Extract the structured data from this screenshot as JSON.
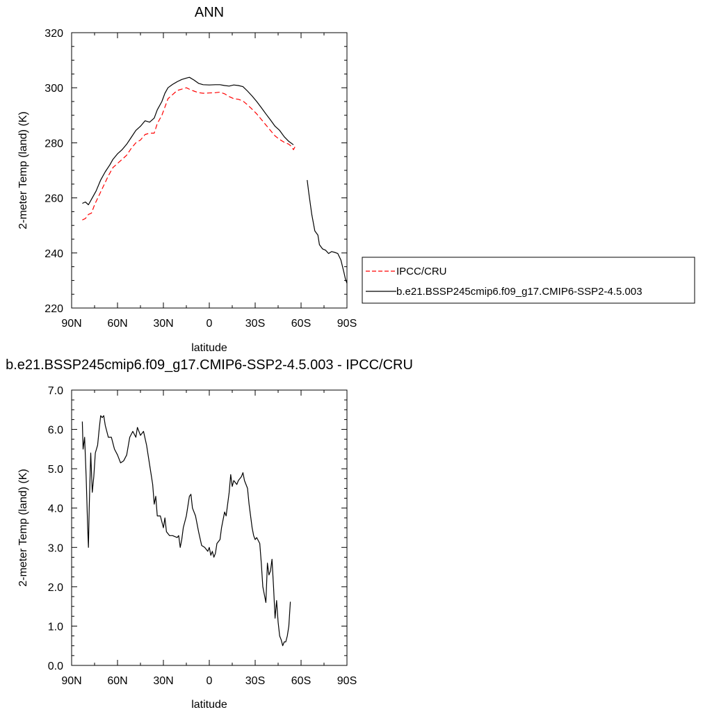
{
  "chart_data": [
    {
      "type": "line",
      "title": "ANN",
      "xlabel": "latitude",
      "ylabel": "2-meter Temp (land) (K)",
      "xlim": [
        90,
        -90
      ],
      "ylim": [
        220,
        320
      ],
      "x_ticks": [
        90,
        60,
        30,
        0,
        -30,
        -60,
        -90
      ],
      "x_tick_labels": [
        "90N",
        "60N",
        "30N",
        "0",
        "30S",
        "60S",
        "90S"
      ],
      "y_ticks": [
        220,
        240,
        260,
        280,
        300,
        320
      ],
      "y_tick_labels": [
        "220",
        "240",
        "260",
        "280",
        "300",
        "320"
      ],
      "legend_position": "right",
      "series": [
        {
          "name": "IPCC/CRU",
          "style": "dashed",
          "color": "#ff0000",
          "segments": [
            [
              [
                83,
                252
              ],
              [
                81,
                252.5
              ],
              [
                79,
                254
              ],
              [
                77,
                254.5
              ],
              [
                75,
                257.5
              ],
              [
                72,
                261
              ],
              [
                69,
                264.5
              ],
              [
                66,
                268
              ],
              [
                63,
                271
              ],
              [
                60,
                272.5
              ],
              [
                57,
                274
              ],
              [
                54,
                275.5
              ],
              [
                51,
                278
              ],
              [
                48,
                280
              ],
              [
                45,
                281
              ],
              [
                42,
                283
              ],
              [
                39,
                283.5
              ],
              [
                36,
                283.5
              ],
              [
                34,
                287
              ],
              [
                31,
                290
              ],
              [
                29,
                293
              ],
              [
                27,
                296
              ],
              [
                24,
                297.5
              ],
              [
                21,
                299
              ],
              [
                18,
                299.5
              ],
              [
                15,
                300
              ],
              [
                12,
                299.2
              ],
              [
                10,
                298.8
              ],
              [
                7,
                298.2
              ],
              [
                4,
                298
              ],
              [
                0,
                298.1
              ],
              [
                -4,
                298.2
              ],
              [
                -7,
                298.4
              ],
              [
                -10,
                297.8
              ],
              [
                -13,
                296.8
              ],
              [
                -16,
                296
              ],
              [
                -19,
                295.8
              ],
              [
                -22,
                295.2
              ],
              [
                -25,
                293.8
              ],
              [
                -28,
                292.2
              ],
              [
                -31,
                290.5
              ],
              [
                -34,
                288.5
              ],
              [
                -37,
                286.5
              ],
              [
                -40,
                284.5
              ],
              [
                -43,
                282.5
              ],
              [
                -46,
                281.2
              ],
              [
                -49,
                280.2
              ],
              [
                -52,
                279.5
              ],
              [
                -54,
                278.5
              ],
              [
                -55,
                277.5
              ],
              [
                -56,
                278.5
              ]
            ]
          ]
        },
        {
          "name": "b.e21.BSSP245cmip6.f09_g17.CMIP6-SSP2-4.5.003",
          "style": "solid",
          "color": "#000000",
          "segments": [
            [
              [
                83,
                258
              ],
              [
                81,
                258.5
              ],
              [
                79,
                257.5
              ],
              [
                77,
                259.5
              ],
              [
                74,
                262.5
              ],
              [
                71,
                266.5
              ],
              [
                68,
                269.5
              ],
              [
                65,
                272
              ],
              [
                63,
                274
              ],
              [
                60,
                276
              ],
              [
                57,
                277.5
              ],
              [
                54,
                279.5
              ],
              [
                51,
                282
              ],
              [
                48,
                284.5
              ],
              [
                45,
                286
              ],
              [
                42,
                288
              ],
              [
                39,
                287.5
              ],
              [
                36,
                289
              ],
              [
                34,
                292
              ],
              [
                31,
                295
              ],
              [
                29,
                298
              ],
              [
                27,
                300
              ],
              [
                24,
                301.2
              ],
              [
                21,
                302.2
              ],
              [
                18,
                303
              ],
              [
                15,
                303.5
              ],
              [
                13,
                303.8
              ],
              [
                10,
                302.8
              ],
              [
                7,
                301.6
              ],
              [
                4,
                301.1
              ],
              [
                0,
                301
              ],
              [
                -4,
                301.1
              ],
              [
                -7,
                301.1
              ],
              [
                -10,
                300.8
              ],
              [
                -13,
                300.6
              ],
              [
                -16,
                301
              ],
              [
                -19,
                300.8
              ],
              [
                -22,
                300.4
              ],
              [
                -25,
                298.8
              ],
              [
                -28,
                297
              ],
              [
                -31,
                295
              ],
              [
                -34,
                292.8
              ],
              [
                -37,
                290.5
              ],
              [
                -40,
                288.3
              ],
              [
                -43,
                286
              ],
              [
                -46,
                284.5
              ],
              [
                -49,
                282.2
              ],
              [
                -52,
                280.5
              ],
              [
                -55,
                279.3
              ]
            ],
            [
              [
                -64,
                266.5
              ],
              [
                -65,
                262
              ],
              [
                -67,
                254
              ],
              [
                -69,
                248
              ],
              [
                -71,
                246.5
              ],
              [
                -72,
                243
              ],
              [
                -74,
                241.5
              ],
              [
                -76,
                241
              ],
              [
                -78,
                239.8
              ],
              [
                -80,
                240.5
              ],
              [
                -82,
                240.2
              ],
              [
                -84,
                239.8
              ],
              [
                -86,
                237.5
              ],
              [
                -88,
                233
              ],
              [
                -89,
                230.5
              ],
              [
                -90,
                229
              ]
            ]
          ]
        }
      ]
    },
    {
      "type": "line",
      "title": "b.e21.BSSP245cmip6.f09_g17.CMIP6-SSP2-4.5.003 - IPCC/CRU",
      "xlabel": "latitude",
      "ylabel": "2-meter Temp (land) (K)",
      "xlim": [
        90,
        -90
      ],
      "ylim": [
        0,
        7
      ],
      "x_ticks": [
        90,
        60,
        30,
        0,
        -30,
        -60,
        -90
      ],
      "x_tick_labels": [
        "90N",
        "60N",
        "30N",
        "0",
        "30S",
        "60S",
        "90S"
      ],
      "y_ticks": [
        0,
        1,
        2,
        3,
        4,
        5,
        6,
        7
      ],
      "y_tick_labels": [
        "0.0",
        "1.0",
        "2.0",
        "3.0",
        "4.0",
        "5.0",
        "6.0",
        "7.0"
      ],
      "series": [
        {
          "style": "solid",
          "color": "#000000",
          "segments": [
            [
              [
                83,
                6.2
              ],
              [
                82.5,
                5.5
              ],
              [
                81.5,
                5.8
              ],
              [
                80.5,
                4.8
              ],
              [
                79.5,
                3.5
              ],
              [
                79,
                3.0
              ],
              [
                78.5,
                4.0
              ],
              [
                77.5,
                5.4
              ],
              [
                76.5,
                4.4
              ],
              [
                75.5,
                4.8
              ],
              [
                74.5,
                5.4
              ],
              [
                73,
                5.6
              ],
              [
                72,
                6.0
              ],
              [
                71,
                6.35
              ],
              [
                70,
                6.3
              ],
              [
                69,
                6.35
              ],
              [
                68,
                6.1
              ],
              [
                66,
                5.8
              ],
              [
                64,
                5.8
              ],
              [
                62,
                5.5
              ],
              [
                60,
                5.35
              ],
              [
                58,
                5.15
              ],
              [
                56,
                5.2
              ],
              [
                54,
                5.35
              ],
              [
                52,
                5.8
              ],
              [
                50,
                5.95
              ],
              [
                48,
                5.8
              ],
              [
                47,
                6.05
              ],
              [
                45,
                5.85
              ],
              [
                43,
                5.95
              ],
              [
                41,
                5.6
              ],
              [
                39,
                5.1
              ],
              [
                37,
                4.6
              ],
              [
                36,
                4.1
              ],
              [
                35,
                4.3
              ],
              [
                34,
                3.8
              ],
              [
                32,
                3.8
              ],
              [
                30,
                3.5
              ],
              [
                29,
                3.75
              ],
              [
                28,
                3.4
              ],
              [
                26,
                3.3
              ],
              [
                24,
                3.3
              ],
              [
                21,
                3.25
              ],
              [
                20,
                3.3
              ],
              [
                19,
                3.0
              ],
              [
                18,
                3.2
              ],
              [
                17,
                3.5
              ],
              [
                15,
                3.8
              ],
              [
                13,
                4.3
              ],
              [
                12,
                4.35
              ],
              [
                11,
                4.0
              ],
              [
                9,
                3.8
              ],
              [
                7,
                3.4
              ],
              [
                5,
                3.05
              ],
              [
                3,
                3.0
              ],
              [
                1,
                2.9
              ],
              [
                0,
                3.0
              ],
              [
                -1,
                2.8
              ],
              [
                -2,
                2.9
              ],
              [
                -3,
                2.75
              ],
              [
                -4,
                2.85
              ],
              [
                -5,
                3.1
              ],
              [
                -7,
                3.2
              ],
              [
                -8,
                3.5
              ],
              [
                -10,
                3.9
              ],
              [
                -11,
                3.8
              ],
              [
                -13,
                4.4
              ],
              [
                -14,
                4.85
              ],
              [
                -15,
                4.55
              ],
              [
                -16,
                4.7
              ],
              [
                -18,
                4.6
              ],
              [
                -19,
                4.7
              ],
              [
                -21,
                4.8
              ],
              [
                -22,
                4.9
              ],
              [
                -23,
                4.7
              ],
              [
                -25,
                4.5
              ],
              [
                -26,
                4.1
              ],
              [
                -27,
                3.8
              ],
              [
                -28,
                3.5
              ],
              [
                -29,
                3.3
              ],
              [
                -30,
                3.2
              ],
              [
                -31,
                3.25
              ],
              [
                -33,
                3.1
              ],
              [
                -34,
                2.6
              ],
              [
                -35,
                2.0
              ],
              [
                -37,
                1.6
              ],
              [
                -38,
                2.6
              ],
              [
                -39,
                2.3
              ],
              [
                -40,
                2.4
              ],
              [
                -41,
                2.7
              ],
              [
                -42,
                2.0
              ],
              [
                -43,
                1.2
              ],
              [
                -44,
                1.65
              ],
              [
                -45,
                1.1
              ],
              [
                -46,
                0.75
              ],
              [
                -47,
                0.65
              ],
              [
                -48,
                0.5
              ],
              [
                -49,
                0.6
              ],
              [
                -50,
                0.6
              ],
              [
                -51,
                0.75
              ],
              [
                -52,
                1.0
              ],
              [
                -53,
                1.62
              ]
            ]
          ]
        }
      ]
    }
  ]
}
